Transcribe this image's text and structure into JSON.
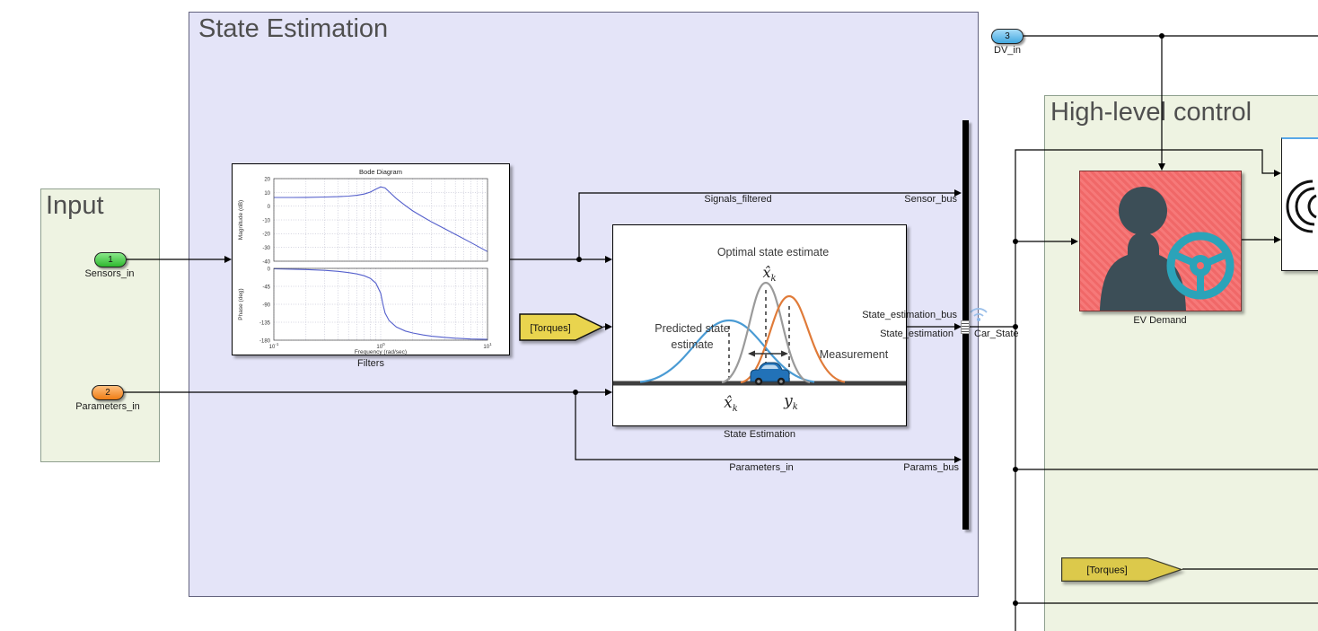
{
  "areas": {
    "state_estimation": "State Estimation",
    "input": "Input",
    "high_level_control": "High-level control"
  },
  "ports": {
    "sensors_in": {
      "number": "1",
      "label": "Sensors_in"
    },
    "parameters_in": {
      "number": "2",
      "label": "Parameters_in"
    },
    "dv_in": {
      "number": "3",
      "label": "DV_in"
    }
  },
  "blocks": {
    "filters": "Filters",
    "state_estimation": "State Estimation",
    "ev_demand": "EV Demand"
  },
  "tags": {
    "torques_top": "[Torques]",
    "torques_bottom": "[Torques]"
  },
  "signals": {
    "signals_filtered": "Signals_filtered",
    "sensor_bus": "Sensor_bus",
    "state_estimation_bus": "State_estimation_bus",
    "state_estimation": "State_estimation",
    "parameters_in": "Parameters_in",
    "params_bus": "Params_bus",
    "car_state": "Car_State"
  },
  "kalman": {
    "optimal": "Optimal state estimate",
    "predicted1": "Predicted state",
    "predicted2": "estimate",
    "measurement": "Measurement",
    "xhat": "x̂",
    "y": "y",
    "k": "k"
  },
  "colors": {
    "se_area_bg": "#e4e4f8",
    "green_area_bg": "#eef3e2",
    "ev_block": "#f56a6a",
    "tag_yellow": "#e9d44e",
    "port_green": "#2eb82e",
    "port_orange": "#ee7d14",
    "port_blue": "#42a8e0",
    "gauss_blue": "#4a9bd4",
    "gauss_gray": "#9a9a9a",
    "gauss_orange": "#e07b39",
    "wheel_teal": "#2ba3b9"
  },
  "bode": {
    "xticks": [
      {
        "b": "10",
        "e": "-1"
      },
      {
        "b": "10",
        "e": "0"
      },
      {
        "b": "10",
        "e": "1"
      }
    ]
  },
  "chart_data": [
    {
      "type": "line",
      "title": "Bode Diagram",
      "ylabel": "Magnitude (dB)",
      "xlabel": "Frequency  (rad/sec)",
      "xscale": "log",
      "xlim": [
        0.1,
        10
      ],
      "ylim": [
        -40,
        20
      ],
      "yticks": [
        20,
        10,
        0,
        -10,
        -20,
        -30,
        -40
      ],
      "grid": true,
      "x": [
        0.1,
        0.15,
        0.2,
        0.3,
        0.4,
        0.5,
        0.6,
        0.7,
        0.8,
        0.9,
        1.0,
        1.1,
        1.2,
        1.4,
        1.7,
        2,
        2.5,
        3,
        4,
        5,
        7,
        10
      ],
      "y": [
        6.3,
        6.3,
        6.4,
        6.6,
        6.9,
        7.3,
        7.9,
        8.8,
        10.2,
        12.3,
        14.0,
        13.2,
        10.5,
        5.5,
        0.5,
        -3.5,
        -8,
        -11.5,
        -16.5,
        -20.5,
        -26.5,
        -33
      ]
    },
    {
      "type": "line",
      "ylabel": "Phase (deg)",
      "xscale": "log",
      "xlim": [
        0.1,
        10
      ],
      "ylim": [
        -180,
        0
      ],
      "yticks": [
        0,
        -45,
        -90,
        -135,
        -180
      ],
      "grid": true,
      "x": [
        0.1,
        0.15,
        0.2,
        0.3,
        0.4,
        0.5,
        0.6,
        0.7,
        0.8,
        0.9,
        1.0,
        1.05,
        1.1,
        1.2,
        1.4,
        1.7,
        2,
        2.5,
        3,
        4,
        5,
        7,
        10
      ],
      "y": [
        -1,
        -2,
        -3,
        -5,
        -7.5,
        -10.5,
        -14,
        -18.5,
        -25,
        -37,
        -62,
        -90,
        -112,
        -131,
        -147,
        -157,
        -162,
        -167,
        -170,
        -173,
        -175,
        -177,
        -178
      ]
    }
  ]
}
